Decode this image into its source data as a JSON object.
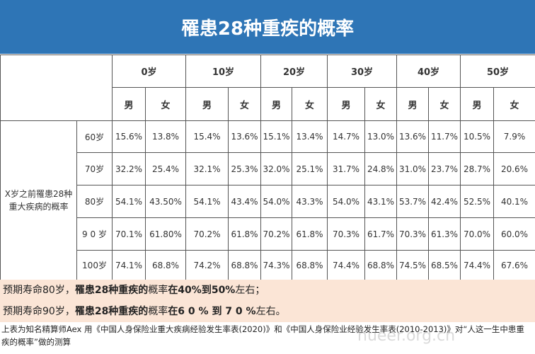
{
  "header": {
    "title": "罹患28种重疾的概率"
  },
  "table": {
    "row_header": "X岁之前罹患28种重大疾病的概率",
    "ages": [
      "0岁",
      "10岁",
      "20岁",
      "30岁",
      "40岁",
      "50岁"
    ],
    "sexes": [
      "男",
      "女"
    ],
    "rows": [
      {
        "label": "60岁",
        "cells": [
          "15.6%",
          "13.8%",
          "15.4%",
          "13.6%",
          "15.1%",
          "13.4%",
          "14.7%",
          "13.0%",
          "13.6%",
          "11.7%",
          "10.5%",
          "7.9%"
        ]
      },
      {
        "label": "70岁",
        "cells": [
          "32.2%",
          "25.4%",
          "32.1%",
          "25.3%",
          "32.0%",
          "25.1%",
          "31.7%",
          "24.8%",
          "31.0%",
          "23.7%",
          "28.7%",
          "20.6%"
        ]
      },
      {
        "label": "80岁",
        "cells": [
          "54.1%",
          "43.50%",
          "54.1%",
          "43.4%",
          "54.0%",
          "43.3%",
          "54.0%",
          "43.1%",
          "53.7%",
          "42.4%",
          "52.5%",
          "40.1%"
        ]
      },
      {
        "label": "9 0 岁",
        "cells": [
          "70.1%",
          "61.80%",
          "70.2%",
          "61.8%",
          "70.2%",
          "61.8%",
          "70.3%",
          "61.7%",
          "70.3%",
          "61.3%",
          "70.0%",
          "60.0%"
        ]
      },
      {
        "label": "100岁",
        "cells": [
          "74.1%",
          "68.8%",
          "74.2%",
          "68.8%",
          "74.3%",
          "68.8%",
          "74.4%",
          "68.8%",
          "74.5%",
          "68.5%",
          "74.4%",
          "67.6%"
        ]
      }
    ]
  },
  "notes": [
    [
      "预期寿命80岁，",
      "罹患28种重疾的",
      "概率",
      "在40%到50%",
      "左右；"
    ],
    [
      "预期寿命90岁，",
      "罹患28种重疾的",
      "概率",
      "在6 0 % 到 7 0 %",
      "左右。"
    ]
  ],
  "footer": "上表为知名精算师Aex 用《中国人身保险业重大疾病经验发生率表(2020)》和《中国人身保险业经验发生率表(2010-2013)》对“人这一生中患重疾的概率”做的测算",
  "watermark": "hueer.org.cn"
}
